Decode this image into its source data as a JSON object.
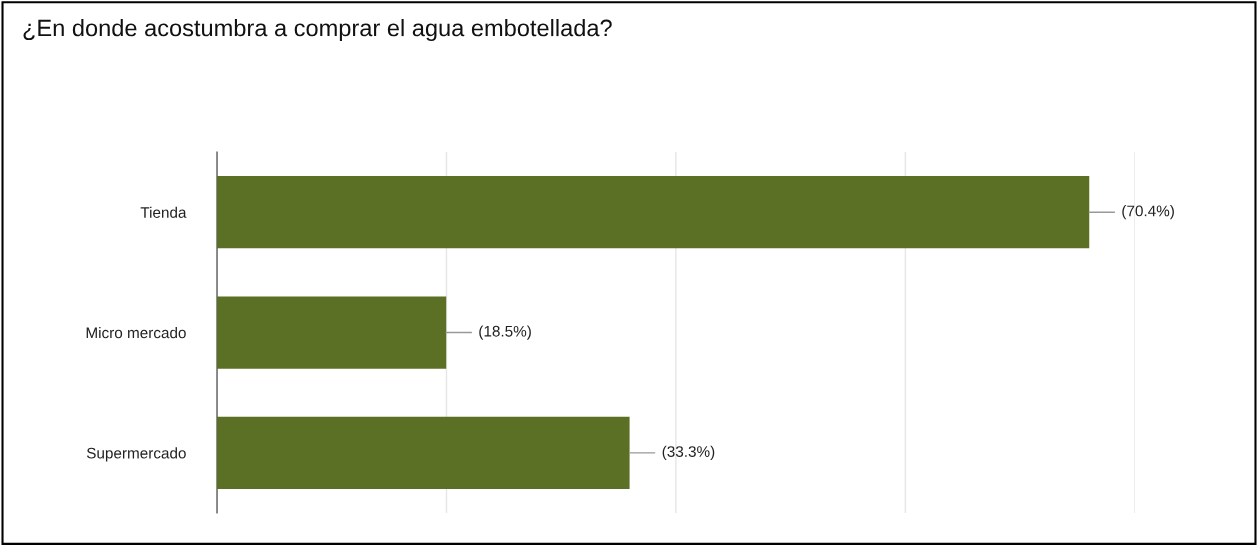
{
  "chart_data": {
    "type": "bar",
    "orientation": "horizontal",
    "title": "¿En donde acostumbra a comprar el agua embotellada?",
    "categories": [
      "Tienda",
      "Micro mercado",
      "Supermercado"
    ],
    "values": [
      70.4,
      18.5,
      33.3
    ],
    "value_labels": [
      "(70.4%)",
      "(18.5%)",
      "(33.3%)"
    ],
    "color": "#5b7024",
    "xlim": [
      0,
      74.07
    ],
    "xticks": [
      {
        "value": 0,
        "label": null
      },
      {
        "value": 18.52,
        "label": null
      },
      {
        "value": 37.04,
        "label": null
      },
      {
        "value": 55.56,
        "label": null
      },
      {
        "value": 74.07,
        "label": null
      }
    ],
    "tick_labels": "y",
    "grid": "x"
  }
}
